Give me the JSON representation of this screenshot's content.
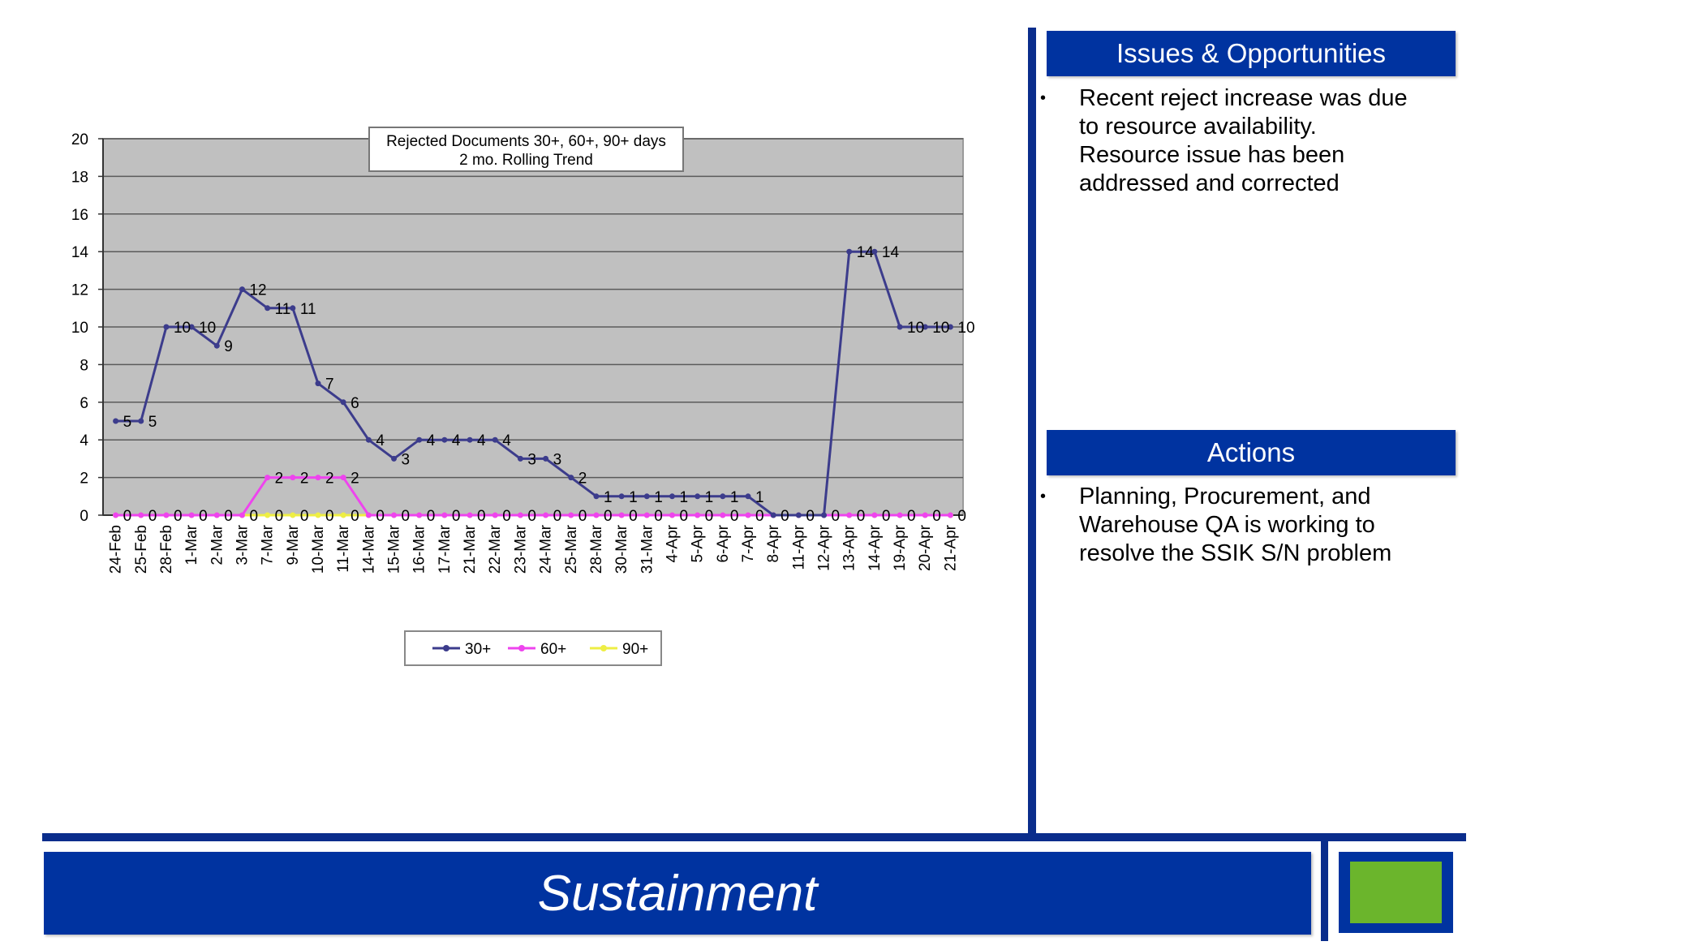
{
  "chart_data": {
    "type": "line",
    "title": "Rejected Documents 30+, 60+, 90+ days",
    "subtitle": "2 mo. Rolling Trend",
    "categories": [
      "24-Feb",
      "25-Feb",
      "28-Feb",
      "1-Mar",
      "2-Mar",
      "3-Mar",
      "7-Mar",
      "9-Mar",
      "10-Mar",
      "11-Mar",
      "14-Mar",
      "15-Mar",
      "16-Mar",
      "17-Mar",
      "21-Mar",
      "22-Mar",
      "23-Mar",
      "24-Mar",
      "25-Mar",
      "28-Mar",
      "30-Mar",
      "31-Mar",
      "4-Apr",
      "5-Apr",
      "6-Apr",
      "7-Apr",
      "8-Apr",
      "11-Apr",
      "12-Apr",
      "13-Apr",
      "14-Apr",
      "19-Apr",
      "20-Apr",
      "21-Apr"
    ],
    "series": [
      {
        "name": "30+",
        "color": "#3c3c8c",
        "values": [
          5,
          5,
          10,
          10,
          9,
          12,
          11,
          11,
          7,
          6,
          4,
          3,
          4,
          4,
          4,
          4,
          3,
          3,
          2,
          1,
          1,
          1,
          1,
          1,
          1,
          1,
          0,
          0,
          0,
          14,
          14,
          10,
          10,
          10
        ]
      },
      {
        "name": "60+",
        "color": "#ee44ee",
        "values": [
          0,
          0,
          0,
          0,
          0,
          0,
          2,
          2,
          2,
          2,
          0,
          0,
          0,
          0,
          0,
          0,
          0,
          0,
          0,
          0,
          0,
          0,
          0,
          0,
          0,
          0,
          0,
          0,
          0,
          0,
          0,
          0,
          0,
          0
        ]
      },
      {
        "name": "90+",
        "color": "#eeee44",
        "values": [
          0,
          0,
          0,
          0,
          0,
          0,
          0,
          0,
          0,
          0,
          0,
          0,
          0,
          0,
          0,
          0,
          0,
          0,
          0,
          0,
          0,
          0,
          0,
          0,
          0,
          0,
          0,
          0,
          0,
          0,
          0,
          0,
          0,
          0
        ]
      }
    ],
    "series_labels_30": [
      "5",
      "5",
      "10",
      "10",
      "9",
      "12",
      "11",
      "11",
      "7",
      "6",
      "4",
      "3",
      "4",
      "4",
      "4",
      "4",
      "3",
      "3",
      "2",
      "1",
      "1",
      "1",
      "1",
      "1",
      "1",
      "1",
      "",
      "",
      "",
      "14",
      "14",
      "10",
      "10",
      "10"
    ],
    "series_labels_60": [
      "",
      "",
      "",
      "",
      "",
      "",
      "2",
      "2",
      "2",
      "2",
      "",
      "",
      "",
      "",
      "",
      "",
      "",
      "",
      "",
      "",
      "",
      "",
      "",
      "",
      "",
      "",
      "",
      "",
      "",
      "",
      "",
      "",
      "",
      ""
    ],
    "series_labels_0": [
      "0",
      "0",
      "0",
      "0",
      "0",
      "0",
      "0",
      "0",
      "0",
      "0",
      "0",
      "0",
      "0",
      "0",
      "0",
      "0",
      "0",
      "0",
      "0",
      "0",
      "0",
      "0",
      "0",
      "0",
      "0",
      "0",
      "0",
      "0",
      "0",
      "0",
      "0",
      "0",
      "0",
      "0"
    ],
    "yticks": [
      "0",
      "2",
      "4",
      "6",
      "8",
      "10",
      "12",
      "14",
      "16",
      "18",
      "20"
    ],
    "ylim": [
      0,
      20
    ],
    "grid": true,
    "legend_position": "bottom"
  },
  "issues": {
    "header": "Issues & Opportunities",
    "bullet": "•",
    "text": "Recent reject increase was due to resource availability. Resource issue has been addressed and corrected"
  },
  "actions": {
    "header": "Actions",
    "bullet": "•",
    "text": "Planning, Procurement, and Warehouse QA is working to resolve the SSIK S/N problem"
  },
  "footer": {
    "title": "Sustainment"
  },
  "colors": {
    "brand_blue": "#0033a0",
    "accent_green": "#6bb52c",
    "plot_bg": "#c0c0c0"
  }
}
